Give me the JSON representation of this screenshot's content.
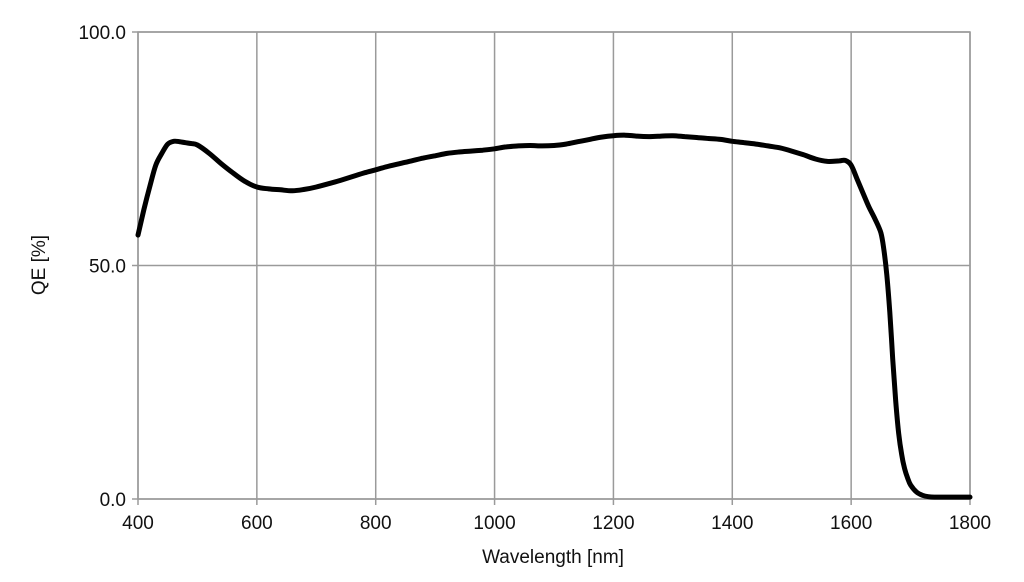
{
  "chart_data": {
    "type": "line",
    "title": "",
    "xlabel": "Wavelength [nm]",
    "ylabel": "QE [%]",
    "xlim": [
      400,
      1800
    ],
    "ylim": [
      0,
      100
    ],
    "x_ticks": [
      400,
      600,
      800,
      1000,
      1200,
      1400,
      1600,
      1800
    ],
    "x_tick_labels": [
      "400",
      "600",
      "800",
      "1000",
      "1200",
      "1400",
      "1600",
      "1800"
    ],
    "y_ticks": [
      0,
      50,
      100
    ],
    "y_tick_labels": [
      "0.0",
      "50.0",
      "100.0"
    ],
    "grid": true,
    "legend": "none",
    "line_color": "#000000",
    "grid_color": "#9a9a9a",
    "series": [
      {
        "x": [
          400,
          410,
          420,
          430,
          440,
          450,
          460,
          470,
          480,
          490,
          500,
          520,
          540,
          560,
          580,
          600,
          620,
          640,
          660,
          680,
          700,
          720,
          740,
          760,
          780,
          800,
          820,
          840,
          860,
          880,
          900,
          920,
          940,
          960,
          980,
          1000,
          1020,
          1040,
          1060,
          1080,
          1100,
          1120,
          1140,
          1160,
          1180,
          1200,
          1220,
          1240,
          1260,
          1280,
          1300,
          1320,
          1340,
          1360,
          1380,
          1400,
          1420,
          1440,
          1460,
          1480,
          1500,
          1520,
          1540,
          1560,
          1580,
          1590,
          1600,
          1610,
          1620,
          1630,
          1640,
          1650,
          1655,
          1660,
          1665,
          1670,
          1675,
          1680,
          1685,
          1690,
          1695,
          1700,
          1710,
          1720,
          1730,
          1740,
          1760,
          1780,
          1800
        ],
        "y": [
          56.5,
          62.0,
          67.0,
          71.5,
          74.0,
          76.0,
          76.6,
          76.5,
          76.3,
          76.1,
          75.8,
          74.0,
          71.8,
          69.8,
          68.0,
          66.8,
          66.4,
          66.2,
          66.0,
          66.3,
          66.8,
          67.5,
          68.2,
          69.0,
          69.8,
          70.5,
          71.2,
          71.8,
          72.4,
          73.0,
          73.5,
          74.0,
          74.3,
          74.5,
          74.7,
          75.0,
          75.4,
          75.6,
          75.7,
          75.6,
          75.7,
          76.0,
          76.5,
          77.0,
          77.5,
          77.8,
          77.9,
          77.7,
          77.6,
          77.7,
          77.8,
          77.6,
          77.4,
          77.2,
          77.0,
          76.6,
          76.3,
          76.0,
          75.6,
          75.2,
          74.5,
          73.7,
          72.8,
          72.3,
          72.4,
          72.5,
          71.5,
          68.5,
          65.5,
          62.5,
          60.0,
          57.0,
          53.5,
          48.0,
          40.0,
          30.0,
          21.0,
          14.0,
          9.5,
          6.5,
          4.5,
          3.0,
          1.5,
          0.8,
          0.5,
          0.4,
          0.4,
          0.4,
          0.4
        ]
      }
    ]
  }
}
